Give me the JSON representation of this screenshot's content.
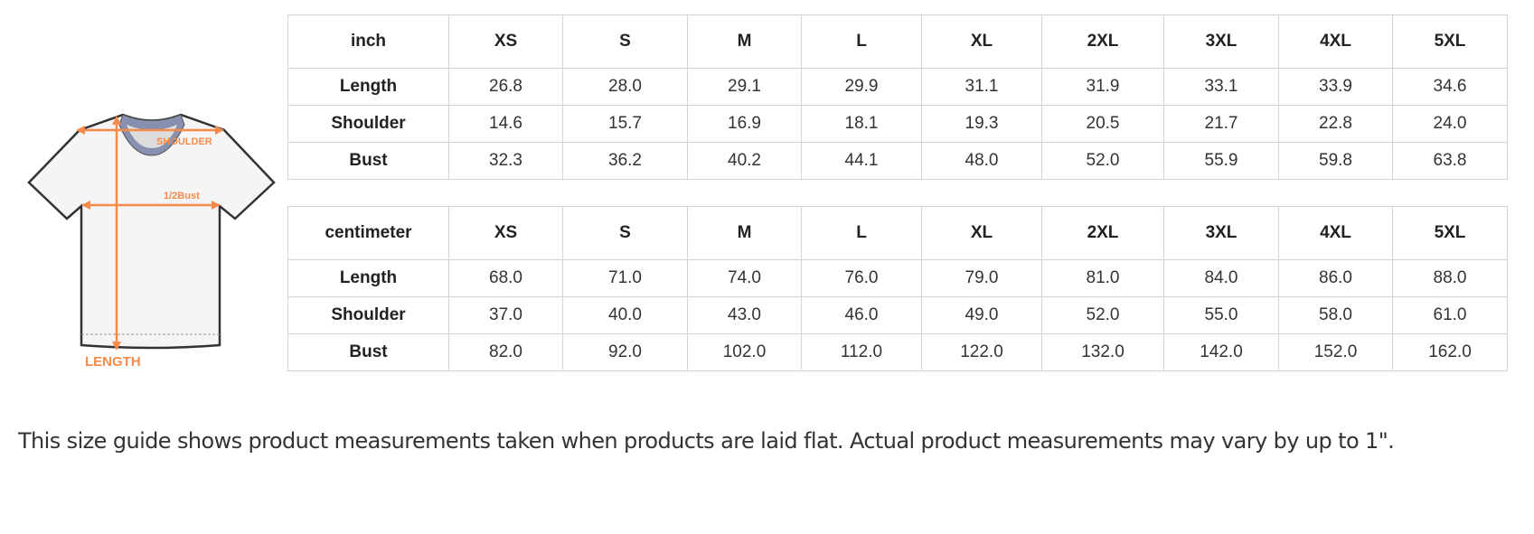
{
  "diagram": {
    "shoulder_label": "SHOULDER",
    "bust_label": "1/2Bust",
    "length_label": "LENGTH",
    "accent_color": "#f58a4b"
  },
  "sizes": [
    "XS",
    "S",
    "M",
    "L",
    "XL",
    "2XL",
    "3XL",
    "4XL",
    "5XL"
  ],
  "inch_table": {
    "unit": "inch",
    "rows": [
      {
        "label": "Length",
        "values": [
          "26.8",
          "28.0",
          "29.1",
          "29.9",
          "31.1",
          "31.9",
          "33.1",
          "33.9",
          "34.6"
        ]
      },
      {
        "label": "Shoulder",
        "values": [
          "14.6",
          "15.7",
          "16.9",
          "18.1",
          "19.3",
          "20.5",
          "21.7",
          "22.8",
          "24.0"
        ]
      },
      {
        "label": "Bust",
        "values": [
          "32.3",
          "36.2",
          "40.2",
          "44.1",
          "48.0",
          "52.0",
          "55.9",
          "59.8",
          "63.8"
        ]
      }
    ]
  },
  "cm_table": {
    "unit": "centimeter",
    "rows": [
      {
        "label": "Length",
        "values": [
          "68.0",
          "71.0",
          "74.0",
          "76.0",
          "79.0",
          "81.0",
          "84.0",
          "86.0",
          "88.0"
        ]
      },
      {
        "label": "Shoulder",
        "values": [
          "37.0",
          "40.0",
          "43.0",
          "46.0",
          "49.0",
          "52.0",
          "55.0",
          "58.0",
          "61.0"
        ]
      },
      {
        "label": "Bust",
        "values": [
          "82.0",
          "92.0",
          "102.0",
          "112.0",
          "122.0",
          "132.0",
          "142.0",
          "152.0",
          "162.0"
        ]
      }
    ]
  },
  "note": "This size guide shows product measurements taken when products are laid flat. Actual product measurements may vary by up to 1\"."
}
